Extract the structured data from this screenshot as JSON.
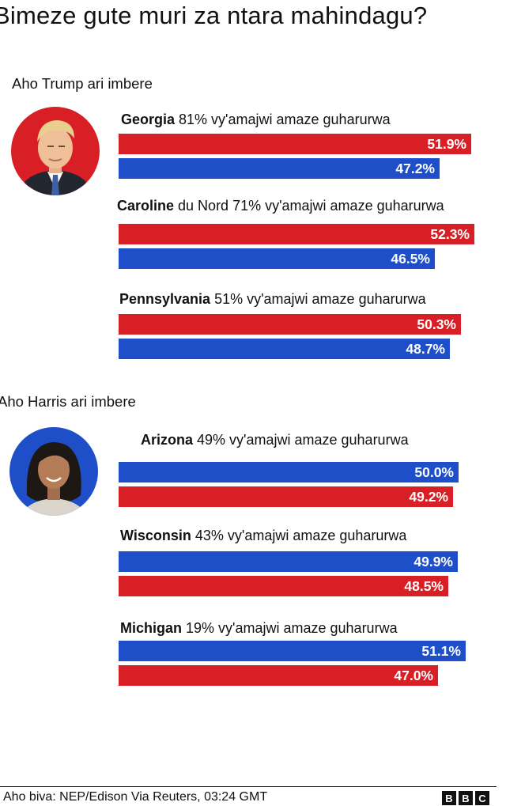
{
  "title": "Bimeze gute muri za ntara mahindagu?",
  "colors": {
    "republican": "#d81f26",
    "democrat": "#1f4fc8"
  },
  "chart_data": {
    "type": "bar",
    "orientation": "horizontal",
    "title": "Bimeze gute muri za ntara mahindagu?",
    "groups": [
      {
        "label": "Aho Trump ari imbere",
        "avatar_icon": "trump-portrait-icon",
        "states": [
          {
            "name": "Georgia",
            "rest": " 81% vy'amajwi amaze guharurwa",
            "bars": [
              {
                "color": "red",
                "value": 51.9,
                "label": "51.9%"
              },
              {
                "color": "blue",
                "value": 47.2,
                "label": "47.2%"
              }
            ]
          },
          {
            "name": "Caroline",
            "rest": " du Nord 71% vy'amajwi amaze guharurwa",
            "bars": [
              {
                "color": "red",
                "value": 52.3,
                "label": "52.3%"
              },
              {
                "color": "blue",
                "value": 46.5,
                "label": "46.5%"
              }
            ]
          },
          {
            "name": "Pennsylvania",
            "rest": " 51% vy'amajwi amaze guharurwa",
            "bars": [
              {
                "color": "red",
                "value": 50.3,
                "label": "50.3%"
              },
              {
                "color": "blue",
                "value": 48.7,
                "label": "48.7%"
              }
            ]
          }
        ]
      },
      {
        "label": "Aho Harris ari imbere",
        "avatar_icon": "harris-portrait-icon",
        "states": [
          {
            "name": "Arizona",
            "rest": " 49% vy'amajwi amaze guharurwa",
            "bars": [
              {
                "color": "blue",
                "value": 50.0,
                "label": "50.0%"
              },
              {
                "color": "red",
                "value": 49.2,
                "label": "49.2%"
              }
            ]
          },
          {
            "name": "Wisconsin",
            "rest": " 43% vy'amajwi amaze guharurwa",
            "bars": [
              {
                "color": "blue",
                "value": 49.9,
                "label": "49.9%"
              },
              {
                "color": "red",
                "value": 48.5,
                "label": "48.5%"
              }
            ]
          },
          {
            "name": "Michigan",
            "rest": " 19% vy'amajwi amaze guharurwa",
            "bars": [
              {
                "color": "blue",
                "value": 51.1,
                "label": "51.1%"
              },
              {
                "color": "red",
                "value": 47.0,
                "label": "47.0%"
              }
            ]
          }
        ]
      }
    ]
  },
  "footer": {
    "source": "Aho biva: NEP/Edison Via Reuters, 03:24 GMT",
    "logo": [
      "B",
      "B",
      "C"
    ]
  }
}
